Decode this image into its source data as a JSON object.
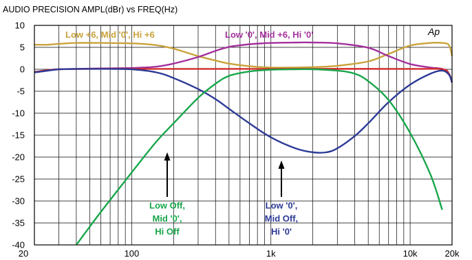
{
  "chart_data": {
    "type": "line",
    "title": "AUDIO PRECISION    AMPL(dBr)    vs    FREQ(Hz)",
    "logo": "Ap",
    "x_scale": "log",
    "xlim": [
      20,
      20000
    ],
    "ylim": [
      -40,
      10
    ],
    "grid": true,
    "x_tick_labels": [
      {
        "value": 20,
        "label": "20"
      },
      {
        "value": 100,
        "label": "100"
      },
      {
        "value": 1000,
        "label": "1k"
      },
      {
        "value": 10000,
        "label": "10k"
      },
      {
        "value": 20000,
        "label": "20k"
      }
    ],
    "y_ticks": [
      10,
      5,
      0,
      -5,
      -10,
      -15,
      -20,
      -25,
      -30,
      -35,
      -40
    ],
    "series": [
      {
        "color": "#c9a23a",
        "x": [
          20,
          25,
          30,
          40,
          60,
          100,
          150,
          200,
          300,
          400,
          500,
          700,
          1000,
          1500,
          2000,
          3000,
          5000,
          7000,
          10000,
          14000,
          17000,
          19000,
          20000
        ],
        "y": [
          5.6,
          5.6,
          5.8,
          6.0,
          6.0,
          5.9,
          5.5,
          4.7,
          3.0,
          2.0,
          1.3,
          0.7,
          0.4,
          0.4,
          0.5,
          0.8,
          1.8,
          3.5,
          5.4,
          6.0,
          6.0,
          5.5,
          3.0
        ]
      },
      {
        "color": "#a3309c",
        "x": [
          20,
          25,
          30,
          40,
          60,
          100,
          150,
          200,
          300,
          400,
          500,
          700,
          1000,
          1500,
          2000,
          3000,
          5000,
          7000,
          10000,
          14000,
          17000,
          19000,
          20000
        ],
        "y": [
          -0.7,
          -0.3,
          0.0,
          0.1,
          0.2,
          0.3,
          0.6,
          1.3,
          2.8,
          4.2,
          5.1,
          5.7,
          6.0,
          6.1,
          6.1,
          5.9,
          4.9,
          3.0,
          1.2,
          0.4,
          0.1,
          -1.0,
          -3.0
        ]
      },
      {
        "color": "#d22a2a",
        "x": [
          20,
          25,
          30,
          50,
          100,
          1000,
          10000,
          17000,
          19000,
          20000
        ],
        "y": [
          -0.6,
          -0.2,
          0.0,
          0.1,
          0.1,
          0.1,
          0.1,
          0.0,
          -1.0,
          -3.0
        ]
      },
      {
        "color": "#2c3a96",
        "x": [
          20,
          25,
          30,
          40,
          60,
          100,
          150,
          200,
          300,
          400,
          500,
          700,
          1000,
          1500,
          2000,
          2500,
          3000,
          4000,
          5000,
          7000,
          10000,
          14000,
          17000,
          19000,
          20000
        ],
        "y": [
          -0.7,
          -0.3,
          0.0,
          0.1,
          0.1,
          0.0,
          -0.7,
          -2.0,
          -4.5,
          -6.8,
          -9.0,
          -12.3,
          -15.5,
          -18.0,
          -18.9,
          -18.9,
          -18.0,
          -15.2,
          -12.3,
          -7.5,
          -3.5,
          -1.0,
          -0.3,
          -1.2,
          -3.0
        ]
      },
      {
        "color": "#17a64a",
        "x": [
          40,
          60,
          100,
          150,
          200,
          300,
          400,
          500,
          700,
          1000,
          1500,
          2000,
          3000,
          4000,
          5000,
          7000,
          10000,
          14000,
          17000
        ],
        "y": [
          -40.0,
          -32.5,
          -23.5,
          -16.5,
          -12.3,
          -6.5,
          -3.3,
          -1.5,
          -0.5,
          -0.1,
          0.0,
          0.0,
          -0.3,
          -1.0,
          -2.7,
          -7.0,
          -14.5,
          -24.0,
          -32.0
        ]
      }
    ],
    "annotations": [
      {
        "key": "gold_label",
        "text": "Low +6, Mid '0', Hi +6",
        "color": "#c9a23a"
      },
      {
        "key": "purple_label",
        "text": "Low '0', Mid +6, Hi '0'",
        "color": "#a3309c"
      },
      {
        "key": "green_label",
        "lines": [
          "Low Off,",
          "Mid '0',",
          "Hi Off"
        ],
        "color": "#17a64a"
      },
      {
        "key": "blue_label",
        "lines": [
          "Low '0',",
          "Mid Off,",
          "Hi '0'"
        ],
        "color": "#2c3a96"
      }
    ]
  }
}
